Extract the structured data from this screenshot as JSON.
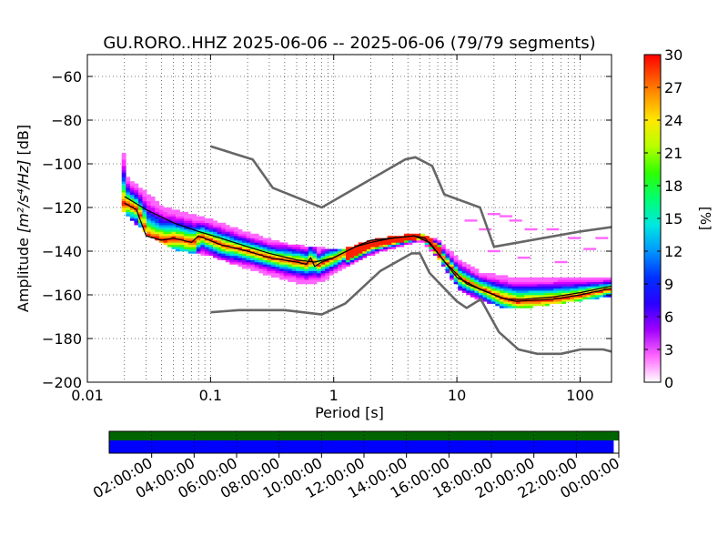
{
  "chart_data": {
    "type": "heatmap",
    "title": "GU.RORO..HHZ   2025-06-06 -- 2025-06-06  (79/79 segments)",
    "xlabel": "Period [s]",
    "ylabel_prefix": "Amplitude ",
    "ylabel_math": "[m²/s⁴/Hz]",
    "ylabel_suffix": " [dB]",
    "x_scale": "log",
    "xlim": [
      0.01,
      180
    ],
    "ylim": [
      -200,
      -50
    ],
    "x_ticks": [
      0.01,
      0.1,
      1,
      10,
      100
    ],
    "x_tick_labels": [
      "0.01",
      "0.1",
      "1",
      "10",
      "100"
    ],
    "y_ticks": [
      -200,
      -180,
      -160,
      -140,
      -120,
      -100,
      -80,
      -60
    ],
    "y_tick_labels": [
      "−200",
      "−180",
      "−160",
      "−140",
      "−120",
      "−100",
      "−80",
      "−60"
    ],
    "grid": true,
    "colorbar": {
      "label": "[%]",
      "range": [
        0,
        30
      ],
      "ticks": [
        0,
        3,
        6,
        9,
        12,
        15,
        18,
        21,
        24,
        27,
        30
      ],
      "tick_labels": [
        "0",
        "3",
        "6",
        "9",
        "12",
        "15",
        "18",
        "21",
        "24",
        "27",
        "30"
      ]
    },
    "noise_models": [
      {
        "points": [
          [
            0.1,
            -92
          ],
          [
            0.22,
            -98
          ],
          [
            0.32,
            -111
          ],
          [
            0.8,
            -120
          ],
          [
            3.8,
            -98
          ],
          [
            4.6,
            -97
          ],
          [
            6.3,
            -101
          ],
          [
            7.9,
            -114
          ],
          [
            15.4,
            -120
          ],
          [
            20,
            -138
          ],
          [
            100,
            -131
          ],
          [
            180,
            -129
          ]
        ]
      },
      {
        "points": [
          [
            0.1,
            -168
          ],
          [
            0.17,
            -167
          ],
          [
            0.4,
            -167
          ],
          [
            0.8,
            -169
          ],
          [
            1.24,
            -164
          ],
          [
            2.4,
            -149
          ],
          [
            4.3,
            -141
          ],
          [
            5.0,
            -141
          ],
          [
            6.0,
            -150
          ],
          [
            10,
            -163
          ],
          [
            12,
            -166
          ],
          [
            15.6,
            -162
          ],
          [
            21.9,
            -177
          ],
          [
            31.6,
            -185
          ],
          [
            45,
            -187
          ],
          [
            70,
            -187
          ],
          [
            101,
            -185
          ],
          [
            154,
            -185
          ],
          [
            180,
            -186
          ]
        ]
      }
    ],
    "mean_curve": [
      [
        0.02,
        -115
      ],
      [
        0.03,
        -121
      ],
      [
        0.05,
        -127
      ],
      [
        0.08,
        -131
      ],
      [
        0.12,
        -134
      ],
      [
        0.2,
        -138
      ],
      [
        0.3,
        -141
      ],
      [
        0.5,
        -144
      ],
      [
        0.7,
        -145
      ],
      [
        1.0,
        -143
      ],
      [
        1.5,
        -138
      ],
      [
        2.0,
        -136
      ],
      [
        3.0,
        -134
      ],
      [
        4.5,
        -133
      ],
      [
        6.0,
        -136
      ],
      [
        8.0,
        -145
      ],
      [
        12,
        -155
      ],
      [
        18,
        -159
      ],
      [
        25,
        -162
      ],
      [
        35,
        -162
      ],
      [
        60,
        -161
      ],
      [
        100,
        -159
      ],
      [
        180,
        -156
      ]
    ],
    "median_curve": [
      [
        0.02,
        -118
      ],
      [
        0.025,
        -121
      ],
      [
        0.03,
        -133
      ],
      [
        0.04,
        -135
      ],
      [
        0.05,
        -134
      ],
      [
        0.07,
        -136
      ],
      [
        0.08,
        -133
      ],
      [
        0.12,
        -137
      ],
      [
        0.2,
        -140
      ],
      [
        0.3,
        -143
      ],
      [
        0.5,
        -145
      ],
      [
        0.6,
        -146
      ],
      [
        0.65,
        -143
      ],
      [
        0.7,
        -147
      ],
      [
        0.8,
        -145
      ],
      [
        1.0,
        -143
      ],
      [
        1.5,
        -138
      ],
      [
        2.0,
        -135
      ],
      [
        3.0,
        -134
      ],
      [
        4.5,
        -133
      ],
      [
        5.5,
        -134
      ],
      [
        7.0,
        -141
      ],
      [
        10,
        -152
      ],
      [
        15,
        -157
      ],
      [
        22,
        -161
      ],
      [
        30,
        -163
      ],
      [
        60,
        -162
      ],
      [
        100,
        -160
      ],
      [
        180,
        -157
      ]
    ],
    "density_band": {
      "upper": [
        [
          0.019,
          -95
        ],
        [
          0.02,
          -106
        ],
        [
          0.04,
          -120
        ],
        [
          0.1,
          -126
        ],
        [
          0.2,
          -132
        ],
        [
          0.4,
          -137
        ],
        [
          0.8,
          -139
        ],
        [
          1.2,
          -139
        ],
        [
          2.0,
          -135
        ],
        [
          3.5,
          -133
        ],
        [
          5.0,
          -132
        ],
        [
          7.0,
          -136
        ],
        [
          10,
          -144
        ],
        [
          15,
          -150
        ],
        [
          25,
          -152
        ],
        [
          40,
          -152
        ],
        [
          180,
          -152
        ]
      ],
      "lower": [
        [
          0.019,
          -122
        ],
        [
          0.03,
          -132
        ],
        [
          0.05,
          -139
        ],
        [
          0.1,
          -142
        ],
        [
          0.2,
          -148
        ],
        [
          0.4,
          -153
        ],
        [
          0.6,
          -155
        ],
        [
          0.8,
          -153
        ],
        [
          1.2,
          -147
        ],
        [
          2.0,
          -141
        ],
        [
          3.5,
          -137
        ],
        [
          5.0,
          -135
        ],
        [
          7.0,
          -144
        ],
        [
          10,
          -157
        ],
        [
          15,
          -162
        ],
        [
          25,
          -166
        ],
        [
          40,
          -165
        ],
        [
          180,
          -160
        ]
      ]
    },
    "high_period_scatter": [
      [
        13,
        -126
      ],
      [
        17,
        -130
      ],
      [
        20,
        -123
      ],
      [
        25,
        -124
      ],
      [
        30,
        -126
      ],
      [
        40,
        -130
      ],
      [
        60,
        -130
      ],
      [
        90,
        -134
      ],
      [
        150,
        -134
      ],
      [
        20,
        -140
      ],
      [
        35,
        -143
      ],
      [
        70,
        -145
      ],
      [
        120,
        -139
      ]
    ]
  },
  "timeline": {
    "tick_labels": [
      "02:00:00",
      "04:00:00",
      "06:00:00",
      "08:00:00",
      "10:00:00",
      "12:00:00",
      "14:00:00",
      "16:00:00",
      "18:00:00",
      "20:00:00",
      "22:00:00",
      "00:00:00"
    ],
    "data_fraction": 0.99,
    "colors": {
      "data": "#0000ff",
      "gaps": "#006400"
    }
  }
}
